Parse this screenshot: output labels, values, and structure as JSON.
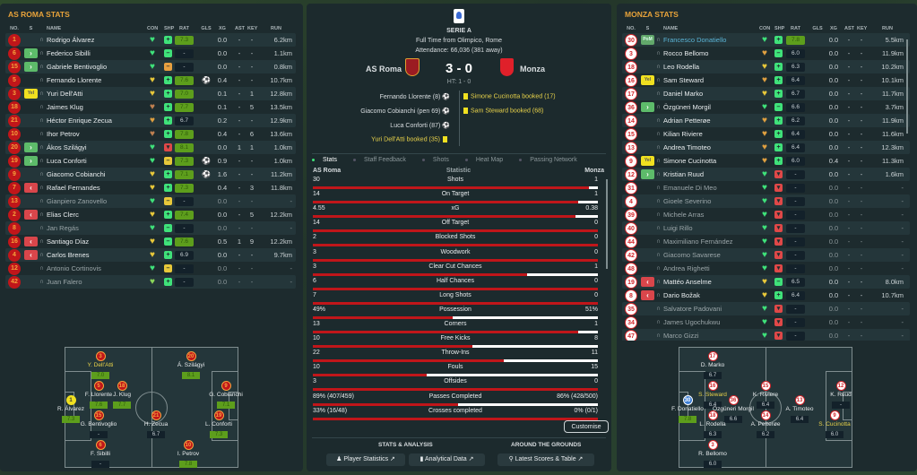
{
  "columns": {
    "no": "NO.",
    "s": "S",
    "name": "NAME",
    "con": "CON",
    "shp": "SHP",
    "rat": "RAT",
    "gls": "GLS",
    "xg": "XG",
    "ast": "AST",
    "key": "KEY",
    "run": "RUN"
  },
  "home": {
    "title": "AS ROMA STATS",
    "players": [
      {
        "no": "1",
        "s": "",
        "name": "Rodrigo Álvarez",
        "con": "green",
        "shp": "up",
        "rat": "7.3",
        "gls": "",
        "xg": "0.0",
        "ast": "-",
        "key": "-",
        "run": "6.2km"
      },
      {
        "no": "6",
        "s": "in",
        "name": "Federico Sibilli",
        "con": "green",
        "shp": "ng",
        "rat": "-",
        "gls": "",
        "xg": "0.0",
        "ast": "-",
        "key": "-",
        "run": "1.1km"
      },
      {
        "no": "15",
        "s": "in",
        "name": "Gabriele Bentivoglio",
        "con": "green",
        "shp": "no",
        "rat": "-",
        "gls": "",
        "xg": "0.0",
        "ast": "-",
        "key": "-",
        "run": "0.8km"
      },
      {
        "no": "5",
        "s": "",
        "name": "Fernando Llorente",
        "con": "yellow",
        "shp": "up",
        "rat": "7.6",
        "gls": "⚽",
        "xg": "0.4",
        "ast": "-",
        "key": "-",
        "run": "10.7km"
      },
      {
        "no": "3",
        "s": "yel",
        "name": "Yuri Dell'Atti",
        "con": "yellow",
        "shp": "up",
        "rat": "7.0",
        "gls": "",
        "xg": "0.1",
        "ast": "-",
        "key": "1",
        "run": "12.8km"
      },
      {
        "no": "18",
        "s": "",
        "name": "Jaimes Klug",
        "con": "brown",
        "shp": "up",
        "rat": "7.7",
        "gls": "",
        "xg": "0.1",
        "ast": "-",
        "key": "5",
        "run": "13.5km"
      },
      {
        "no": "21",
        "s": "",
        "name": "Héctor Enrique Zecua",
        "con": "orange",
        "shp": "up",
        "rat": "6.7",
        "gls": "",
        "xg": "0.2",
        "ast": "-",
        "key": "-",
        "run": "12.9km"
      },
      {
        "no": "10",
        "s": "",
        "name": "Ihor Petrov",
        "con": "brown",
        "shp": "up",
        "rat": "7.8",
        "gls": "",
        "xg": "0.4",
        "ast": "-",
        "key": "6",
        "run": "13.6km"
      },
      {
        "no": "20",
        "s": "in",
        "name": "Ákos Szilágyi",
        "con": "green",
        "shp": "down",
        "rat": "8.1",
        "gls": "",
        "xg": "0.0",
        "ast": "1",
        "key": "1",
        "run": "1.0km"
      },
      {
        "no": "19",
        "s": "in",
        "name": "Luca Conforti",
        "con": "green",
        "shp": "ny",
        "rat": "7.3",
        "gls": "⚽",
        "xg": "0.9",
        "ast": "-",
        "key": "-",
        "run": "1.0km"
      },
      {
        "no": "9",
        "s": "",
        "name": "Giacomo Cobianchi",
        "con": "yellow",
        "shp": "up",
        "rat": "7.1",
        "gls": "⚽",
        "xg": "1.6",
        "ast": "-",
        "key": "-",
        "run": "11.2km"
      },
      {
        "no": "7",
        "s": "out",
        "name": "Rafael Fernandes",
        "con": "yellow",
        "shp": "up",
        "rat": "7.3",
        "gls": "",
        "xg": "0.4",
        "ast": "-",
        "key": "3",
        "run": "11.8km"
      },
      {
        "no": "13",
        "s": "",
        "name": "Gianpiero Zanovello",
        "con": "green",
        "shp": "ny",
        "rat": "-",
        "gls": "",
        "xg": "0.0",
        "ast": "-",
        "key": "-",
        "run": "-",
        "dim": true
      },
      {
        "no": "2",
        "s": "out",
        "name": "Elias Clerc",
        "con": "yellow",
        "shp": "up",
        "rat": "7.4",
        "gls": "",
        "xg": "0.0",
        "ast": "-",
        "key": "5",
        "run": "12.2km"
      },
      {
        "no": "8",
        "s": "",
        "name": "Jan Regás",
        "con": "green",
        "shp": "ng",
        "rat": "-",
        "gls": "",
        "xg": "0.0",
        "ast": "-",
        "key": "-",
        "run": "-",
        "dim": true
      },
      {
        "no": "16",
        "s": "out",
        "name": "Santiago Díaz",
        "con": "yellow",
        "shp": "ng",
        "rat": "7.6",
        "gls": "",
        "xg": "0.5",
        "ast": "1",
        "key": "9",
        "run": "12.2km"
      },
      {
        "no": "4",
        "s": "out",
        "name": "Carlos Brenes",
        "con": "yellow",
        "shp": "up",
        "rat": "6.9",
        "gls": "",
        "xg": "0.0",
        "ast": "-",
        "key": "-",
        "run": "9.7km"
      },
      {
        "no": "12",
        "s": "",
        "name": "Antonio Cortinovis",
        "con": "green",
        "shp": "ny",
        "rat": "-",
        "gls": "",
        "xg": "0.0",
        "ast": "-",
        "key": "-",
        "run": "-",
        "dim": true
      },
      {
        "no": "42",
        "s": "",
        "name": "Juan Falero",
        "con": "light",
        "shp": "up",
        "rat": "-",
        "gls": "",
        "xg": "0.0",
        "ast": "-",
        "key": "-",
        "run": "-",
        "dim": true
      }
    ],
    "lineup": [
      {
        "no": "3",
        "name": "Y. Dell'Atti",
        "rat": "7.0",
        "booked": true
      },
      {
        "no": "20",
        "name": "Á. Szilágyi",
        "rat": "8.1"
      },
      {
        "no": "5",
        "name": "F. Llorente",
        "rat": "7.6"
      },
      {
        "no": "18",
        "name": "J. Klug",
        "rat": "7.7"
      },
      {
        "no": "1",
        "name": "R. Álvarez",
        "rat": "7.3",
        "gk": true
      },
      {
        "no": "15",
        "name": "G. Bentivoglio",
        "rat": "-"
      },
      {
        "no": "21",
        "name": "H. Zecua",
        "rat": "6.7"
      },
      {
        "no": "9",
        "name": "G. Cobianchi",
        "rat": "7.1"
      },
      {
        "no": "19",
        "name": "L. Conforti",
        "rat": "7.3"
      },
      {
        "no": "6",
        "name": "F. Sibilli",
        "rat": "-"
      },
      {
        "no": "10",
        "name": "I. Petrov",
        "rat": "7.8"
      }
    ]
  },
  "away": {
    "title": "MONZA STATS",
    "players": [
      {
        "no": "30",
        "s": "pom",
        "s_label": "PoM",
        "name": "Francesco Donatiello",
        "con": "green",
        "shp": "up",
        "rat": "7.8",
        "gls": "",
        "xg": "0.0",
        "ast": "-",
        "key": "-",
        "run": "5.5km",
        "star": true
      },
      {
        "no": "3",
        "s": "",
        "name": "Rocco Bellomo",
        "con": "orange",
        "shp": "ng",
        "rat": "6.0",
        "gls": "",
        "xg": "0.0",
        "ast": "-",
        "key": "-",
        "run": "11.9km"
      },
      {
        "no": "18",
        "s": "",
        "name": "Leo Rodella",
        "con": "yellow",
        "shp": "up",
        "rat": "6.3",
        "gls": "",
        "xg": "0.0",
        "ast": "-",
        "key": "-",
        "run": "10.2km"
      },
      {
        "no": "16",
        "s": "yel",
        "name": "Sam Steward",
        "con": "orange",
        "shp": "up",
        "rat": "6.4",
        "gls": "",
        "xg": "0.0",
        "ast": "-",
        "key": "-",
        "run": "10.1km"
      },
      {
        "no": "17",
        "s": "",
        "name": "Daniel Marko",
        "con": "yellow",
        "shp": "up",
        "rat": "6.7",
        "gls": "",
        "xg": "0.0",
        "ast": "-",
        "key": "-",
        "run": "11.7km"
      },
      {
        "no": "36",
        "s": "in",
        "name": "Özgüneri Morgil",
        "con": "green",
        "shp": "ng",
        "rat": "6.6",
        "gls": "",
        "xg": "0.0",
        "ast": "-",
        "key": "-",
        "run": "3.7km"
      },
      {
        "no": "14",
        "s": "",
        "name": "Adrian Petterøe",
        "con": "orange",
        "shp": "up",
        "rat": "6.2",
        "gls": "",
        "xg": "0.0",
        "ast": "-",
        "key": "-",
        "run": "11.9km"
      },
      {
        "no": "15",
        "s": "",
        "name": "Kilian Riviere",
        "con": "orange",
        "shp": "up",
        "rat": "6.4",
        "gls": "",
        "xg": "0.0",
        "ast": "-",
        "key": "-",
        "run": "11.6km"
      },
      {
        "no": "13",
        "s": "",
        "name": "Andrea Timoteo",
        "con": "orange",
        "shp": "up",
        "rat": "6.4",
        "gls": "",
        "xg": "0.0",
        "ast": "-",
        "key": "-",
        "run": "12.3km"
      },
      {
        "no": "9",
        "s": "yel",
        "name": "Simone Cucinotta",
        "con": "orange",
        "shp": "up",
        "rat": "6.0",
        "gls": "",
        "xg": "0.4",
        "ast": "-",
        "key": "-",
        "run": "11.3km"
      },
      {
        "no": "12",
        "s": "in",
        "name": "Kristian Ruud",
        "con": "green",
        "shp": "down",
        "rat": "-",
        "gls": "",
        "xg": "0.0",
        "ast": "-",
        "key": "-",
        "run": "1.6km"
      },
      {
        "no": "31",
        "s": "",
        "name": "Emanuele Di Meo",
        "con": "green",
        "shp": "down",
        "rat": "-",
        "gls": "",
        "xg": "0.0",
        "ast": "-",
        "key": "-",
        "run": "-",
        "dim": true
      },
      {
        "no": "4",
        "s": "",
        "name": "Gioele Severino",
        "con": "green",
        "shp": "down",
        "rat": "-",
        "gls": "",
        "xg": "0.0",
        "ast": "-",
        "key": "-",
        "run": "-",
        "dim": true
      },
      {
        "no": "39",
        "s": "",
        "name": "Michele Arras",
        "con": "green",
        "shp": "down",
        "rat": "-",
        "gls": "",
        "xg": "0.0",
        "ast": "-",
        "key": "-",
        "run": "-",
        "dim": true
      },
      {
        "no": "40",
        "s": "",
        "name": "Luigi Rillo",
        "con": "green",
        "shp": "down",
        "rat": "-",
        "gls": "",
        "xg": "0.0",
        "ast": "-",
        "key": "-",
        "run": "-",
        "dim": true
      },
      {
        "no": "44",
        "s": "",
        "name": "Maximiliano Fernández",
        "con": "green",
        "shp": "down",
        "rat": "-",
        "gls": "",
        "xg": "0.0",
        "ast": "-",
        "key": "-",
        "run": "-",
        "dim": true
      },
      {
        "no": "42",
        "s": "",
        "name": "Giacomo Savarese",
        "con": "green",
        "shp": "down",
        "rat": "-",
        "gls": "",
        "xg": "0.0",
        "ast": "-",
        "key": "-",
        "run": "-",
        "dim": true
      },
      {
        "no": "48",
        "s": "",
        "name": "Andrea Righetti",
        "con": "green",
        "shp": "down",
        "rat": "-",
        "gls": "",
        "xg": "0.0",
        "ast": "-",
        "key": "-",
        "run": "-",
        "dim": true
      },
      {
        "no": "19",
        "s": "out",
        "name": "Mattéo Anselme",
        "con": "yellow",
        "shp": "ng",
        "rat": "6.5",
        "gls": "",
        "xg": "0.0",
        "ast": "-",
        "key": "-",
        "run": "8.0km"
      },
      {
        "no": "8",
        "s": "out",
        "name": "Dario Božak",
        "con": "yellow",
        "shp": "up",
        "rat": "6.4",
        "gls": "",
        "xg": "0.0",
        "ast": "-",
        "key": "-",
        "run": "10.7km"
      },
      {
        "no": "35",
        "s": "",
        "name": "Salvatore Padovani",
        "con": "green",
        "shp": "down",
        "rat": "-",
        "gls": "",
        "xg": "0.0",
        "ast": "-",
        "key": "-",
        "run": "-",
        "dim": true
      },
      {
        "no": "34",
        "s": "",
        "name": "James Ugochukwu",
        "con": "green",
        "shp": "down",
        "rat": "-",
        "gls": "",
        "xg": "0.0",
        "ast": "-",
        "key": "-",
        "run": "-",
        "dim": true
      },
      {
        "no": "47",
        "s": "",
        "name": "Marco Gizzi",
        "con": "green",
        "shp": "down",
        "rat": "-",
        "gls": "",
        "xg": "0.0",
        "ast": "-",
        "key": "-",
        "run": "-",
        "dim": true
      }
    ],
    "lineup": [
      {
        "no": "17",
        "name": "D. Marko",
        "rat": "6.7"
      },
      {
        "no": "16",
        "name": "S. Steward",
        "rat": "6.4",
        "booked": true
      },
      {
        "no": "36",
        "name": "Özgüneri Morgil",
        "rat": "6.6"
      },
      {
        "no": "30",
        "name": "F. Donatiello",
        "rat": "7.8",
        "gk": true
      },
      {
        "no": "18",
        "name": "L. Rodella",
        "rat": "6.3"
      },
      {
        "no": "3",
        "name": "R. Bellomo",
        "rat": "6.0"
      },
      {
        "no": "15",
        "name": "K. Riviere",
        "rat": "6.4"
      },
      {
        "no": "14",
        "name": "A. Petterøe",
        "rat": "6.2"
      },
      {
        "no": "13",
        "name": "A. Timoteo",
        "rat": "6.4"
      },
      {
        "no": "12",
        "name": "K. Ruud",
        "rat": "-"
      },
      {
        "no": "9",
        "name": "S. Cucinotta",
        "rat": "6.0",
        "booked": true
      }
    ]
  },
  "match": {
    "competition": "SERIE A",
    "venue": "Full Time from Olimpico, Rome",
    "attendance": "Attendance: 66,036 (381 away)",
    "home_team": "AS Roma",
    "away_team": "Monza",
    "score": "3 - 0",
    "ht": "HT: 1 - 0",
    "home_events": [
      {
        "text": "Fernando Llorente (8)",
        "type": "goal"
      },
      {
        "text": "Giacomo Cobianchi (pen 69)",
        "type": "goal"
      },
      {
        "text": "Luca Conforti (87)",
        "type": "goal"
      },
      {
        "text": "Yuri Dell'Atti booked (35)",
        "type": "card"
      }
    ],
    "away_events": [
      {
        "text": "Simone Cucinotta booked (17)",
        "type": "card"
      },
      {
        "text": "Sam Steward booked (68)",
        "type": "card"
      }
    ]
  },
  "tabs": [
    "Stats",
    "Staff Feedback",
    "Shots",
    "Heat Map",
    "Passing Network"
  ],
  "stats_header": {
    "home": "AS Roma",
    "label": "Statistic",
    "away": "Monza"
  },
  "stats": [
    {
      "label": "Shots",
      "home": "30",
      "away": "1",
      "home_share": 0.97
    },
    {
      "label": "On Target",
      "home": "14",
      "away": "1",
      "home_share": 0.93
    },
    {
      "label": "xG",
      "home": "4.55",
      "away": "0.38",
      "home_share": 0.92
    },
    {
      "label": "Off Target",
      "home": "14",
      "away": "0",
      "home_share": 1
    },
    {
      "label": "Blocked Shots",
      "home": "2",
      "away": "0",
      "home_share": 1
    },
    {
      "label": "Woodwork",
      "home": "3",
      "away": "0",
      "home_share": 1
    },
    {
      "label": "Clear Cut Chances",
      "home": "3",
      "away": "1",
      "home_share": 0.75
    },
    {
      "label": "Half Chances",
      "home": "6",
      "away": "0",
      "home_share": 1
    },
    {
      "label": "Long Shots",
      "home": "7",
      "away": "0",
      "home_share": 1
    },
    {
      "label": "Possession",
      "home": "49%",
      "away": "51%",
      "home_share": 0.49
    },
    {
      "label": "Corners",
      "home": "13",
      "away": "1",
      "home_share": 0.93
    },
    {
      "label": "Free Kicks",
      "home": "10",
      "away": "8",
      "home_share": 0.56
    },
    {
      "label": "Throw-Ins",
      "home": "22",
      "away": "11",
      "home_share": 0.67
    },
    {
      "label": "Fouls",
      "home": "10",
      "away": "15",
      "home_share": 0.4
    },
    {
      "label": "Offsides",
      "home": "3",
      "away": "0",
      "home_share": 1
    },
    {
      "label": "Passes Completed",
      "home": "89% (407/459)",
      "away": "86% (428/500)",
      "home_share": 0.51
    },
    {
      "label": "Crosses completed",
      "home": "33% (16/48)",
      "away": "0% (0/1)",
      "home_share": 1
    }
  ],
  "customise": "Customise",
  "links": {
    "stats_heading": "STATS & ANALYSIS",
    "grounds_heading": "AROUND THE GROUNDS",
    "player_stats": "Player Statistics",
    "analytical": "Analytical Data",
    "scores": "Latest Scores & Table"
  }
}
